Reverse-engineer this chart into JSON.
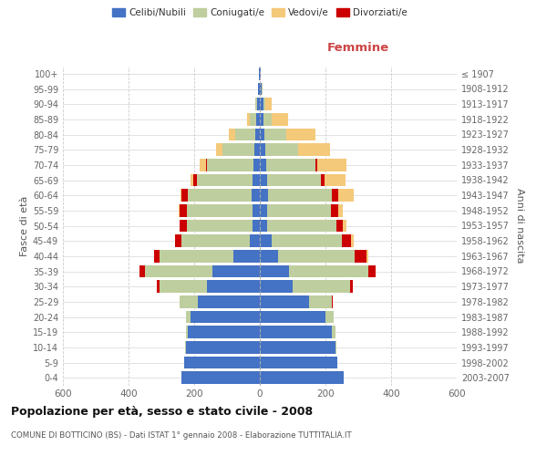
{
  "age_groups": [
    "0-4",
    "5-9",
    "10-14",
    "15-19",
    "20-24",
    "25-29",
    "30-34",
    "35-39",
    "40-44",
    "45-49",
    "50-54",
    "55-59",
    "60-64",
    "65-69",
    "70-74",
    "75-79",
    "80-84",
    "85-89",
    "90-94",
    "95-99",
    "100+"
  ],
  "birth_years": [
    "2003-2007",
    "1998-2002",
    "1993-1997",
    "1988-1992",
    "1983-1987",
    "1978-1982",
    "1973-1977",
    "1968-1972",
    "1963-1967",
    "1958-1962",
    "1953-1957",
    "1948-1952",
    "1943-1947",
    "1938-1942",
    "1933-1937",
    "1928-1932",
    "1923-1927",
    "1918-1922",
    "1913-1917",
    "1908-1912",
    "≤ 1907"
  ],
  "male": {
    "celibe": [
      240,
      230,
      225,
      220,
      210,
      190,
      160,
      145,
      80,
      30,
      22,
      22,
      25,
      22,
      20,
      18,
      15,
      10,
      8,
      5,
      2
    ],
    "coniugato": [
      0,
      0,
      2,
      5,
      15,
      55,
      145,
      205,
      225,
      210,
      200,
      200,
      195,
      170,
      140,
      95,
      60,
      20,
      5,
      0,
      0
    ],
    "vedovo": [
      0,
      0,
      0,
      0,
      0,
      0,
      0,
      0,
      0,
      0,
      0,
      2,
      5,
      10,
      18,
      20,
      20,
      10,
      2,
      0,
      0
    ],
    "divorziato": [
      0,
      0,
      0,
      0,
      0,
      0,
      8,
      18,
      18,
      18,
      22,
      22,
      18,
      10,
      5,
      0,
      0,
      0,
      0,
      0,
      0
    ]
  },
  "female": {
    "nubile": [
      255,
      235,
      230,
      220,
      200,
      150,
      100,
      90,
      55,
      35,
      22,
      22,
      25,
      22,
      20,
      18,
      15,
      12,
      12,
      5,
      2
    ],
    "coniugata": [
      0,
      0,
      2,
      10,
      25,
      70,
      175,
      240,
      235,
      215,
      210,
      195,
      195,
      165,
      150,
      100,
      65,
      25,
      5,
      2,
      0
    ],
    "vedova": [
      0,
      0,
      0,
      0,
      0,
      0,
      0,
      2,
      5,
      8,
      10,
      15,
      45,
      65,
      90,
      95,
      90,
      50,
      18,
      2,
      0
    ],
    "divorziata": [
      0,
      0,
      0,
      0,
      0,
      2,
      8,
      22,
      35,
      28,
      22,
      22,
      20,
      10,
      5,
      0,
      0,
      0,
      0,
      0,
      0
    ]
  },
  "colors": {
    "celibe_nubile": "#4472C4",
    "coniugato_a": "#BFCE9E",
    "vedovo_a": "#F5C97A",
    "divorziato_a": "#CC0000"
  },
  "title": "Popolazione per età, sesso e stato civile - 2008",
  "subtitle": "COMUNE DI BOTTICINO (BS) - Dati ISTAT 1° gennaio 2008 - Elaborazione TUTTITALIA.IT",
  "label_femmine": "Femmine",
  "ylabel_left": "Fasce di età",
  "ylabel_right": "Anni di nascita",
  "xlim": 600,
  "background_color": "#ffffff",
  "grid_color": "#cccccc",
  "legend": [
    "Celibi/Nubili",
    "Coniugati/e",
    "Vedovi/e",
    "Divorziati/e"
  ]
}
